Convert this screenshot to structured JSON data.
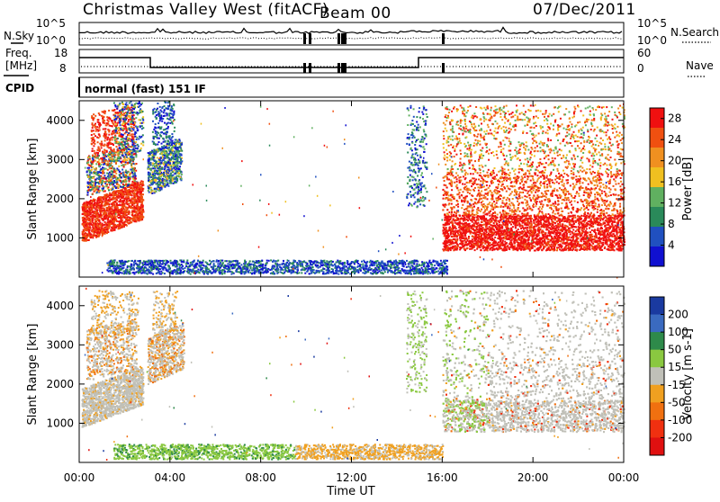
{
  "header": {
    "station_title": "Christmas Valley West (fitACF)",
    "beam": "Beam 00",
    "date": "07/Dec/2011"
  },
  "left_labels": {
    "nsky": "N.Sky",
    "freq_line1": "Freq.",
    "freq_line2": "[MHz]",
    "cpid": "CPID"
  },
  "right_labels": {
    "nsearch": "N.Search",
    "nave": "Nave"
  },
  "cpid_text": "normal (fast) 151 IF",
  "noise_panel": {
    "left_ticks": [
      "10^5",
      "10^0"
    ],
    "right_ticks": [
      "10^5",
      "10^0"
    ]
  },
  "freq_panel": {
    "left_ticks": [
      "18",
      "8"
    ],
    "right_ticks": [
      "60",
      "0"
    ]
  },
  "x_axis": {
    "label": "Time UT",
    "ticks": [
      "00:00",
      "04:00",
      "08:00",
      "12:00",
      "16:00",
      "20:00",
      "00:00"
    ]
  },
  "colors": {
    "power_scale": [
      "#1010d0",
      "#2050c0",
      "#2a8a5a",
      "#60b060",
      "#f0c020",
      "#f09020",
      "#f05010",
      "#f01010"
    ],
    "velocity_scale": [
      "#1a3aa0",
      "#3a6ac0",
      "#2e8a4a",
      "#8ac840",
      "#c0c0b8",
      "#f0a020",
      "#f07010",
      "#f03010",
      "#e01010"
    ],
    "ground_scatter": "#c0c0b8"
  },
  "chart_data": [
    {
      "type": "heatmap",
      "name": "power",
      "ylabel": "Slant Range [km]",
      "xlabel": "",
      "xlim": [
        0,
        24
      ],
      "ylim": [
        0,
        4500
      ],
      "y_ticks": [
        "1000",
        "2000",
        "3000",
        "4000"
      ],
      "colorbar_label": "Power [dB]",
      "colorbar_ticks": [
        "4",
        "8",
        "12",
        "16",
        "20",
        "24",
        "28"
      ],
      "colorbar_range": [
        0,
        30
      ]
    },
    {
      "type": "heatmap",
      "name": "velocity",
      "ylabel": "Slant Range [km]",
      "xlabel": "Time UT",
      "xlim": [
        0,
        24
      ],
      "ylim": [
        0,
        4500
      ],
      "y_ticks": [
        "1000",
        "2000",
        "3000",
        "4000"
      ],
      "colorbar_label": "Velocity [m s-1]",
      "colorbar_ticks": [
        "200",
        "100",
        "50",
        "15",
        "-15",
        "-50",
        "-100",
        "-200"
      ]
    }
  ]
}
